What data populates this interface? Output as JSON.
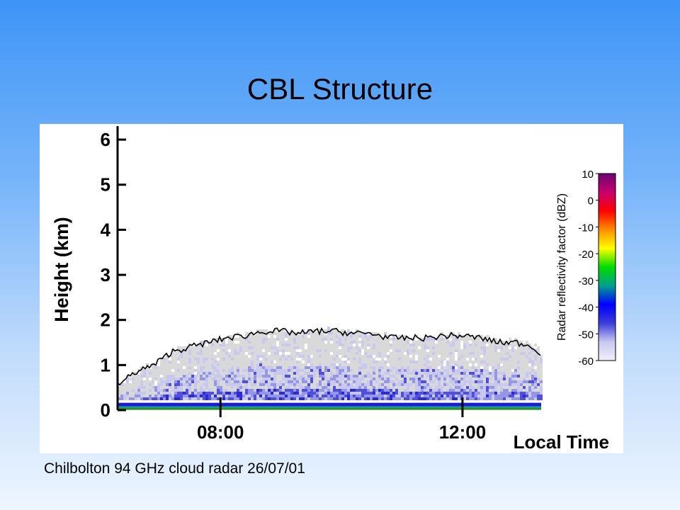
{
  "slide": {
    "title": "CBL Structure",
    "caption": "Chilbolton 94 GHz cloud radar  26/07/01"
  },
  "chart_data": {
    "type": "heatmap",
    "title": "",
    "xlabel": "Local Time",
    "ylabel": "Height (km)",
    "xlim_hours": [
      6.3,
      13.3
    ],
    "ylim": [
      0,
      6.3
    ],
    "x_ticks": [
      {
        "value": 8,
        "label": "08:00"
      },
      {
        "value": 12,
        "label": "12:00"
      }
    ],
    "y_ticks": [
      {
        "value": 0,
        "label": "0"
      },
      {
        "value": 1,
        "label": "1"
      },
      {
        "value": 2,
        "label": "2"
      },
      {
        "value": 3,
        "label": "3"
      },
      {
        "value": 4,
        "label": "4"
      },
      {
        "value": 5,
        "label": "5"
      },
      {
        "value": 6,
        "label": "6"
      }
    ],
    "colorbar": {
      "label": "Radar reflectivity factor (dBZ)",
      "range": [
        -60,
        10
      ],
      "ticks": [
        "10",
        "0",
        "-10",
        "-20",
        "-30",
        "-40",
        "-50",
        "-60"
      ],
      "colors": [
        "#6a0572",
        "#c8006e",
        "#ff0000",
        "#ff8c00",
        "#ffff00",
        "#00dc00",
        "#00a08c",
        "#0000ff",
        "#3c3cdc",
        "#c8c8f0",
        "#f0f0fa"
      ]
    },
    "cbl_top": {
      "name": "boundary layer top",
      "x_hours": [
        6.3,
        6.6,
        6.9,
        7.2,
        7.5,
        7.8,
        8.1,
        8.4,
        8.7,
        9.0,
        9.3,
        9.6,
        9.9,
        10.2,
        10.5,
        10.8,
        11.1,
        11.4,
        11.7,
        12.0,
        12.3,
        12.6,
        12.9,
        13.2,
        13.3
      ],
      "height_km": [
        0.55,
        0.85,
        1.0,
        1.3,
        1.4,
        1.5,
        1.6,
        1.65,
        1.75,
        1.75,
        1.7,
        1.75,
        1.75,
        1.7,
        1.7,
        1.6,
        1.6,
        1.6,
        1.65,
        1.65,
        1.6,
        1.5,
        1.5,
        1.4,
        1.15
      ]
    },
    "surface_clutter_height_km": 0.1,
    "grid": false
  }
}
